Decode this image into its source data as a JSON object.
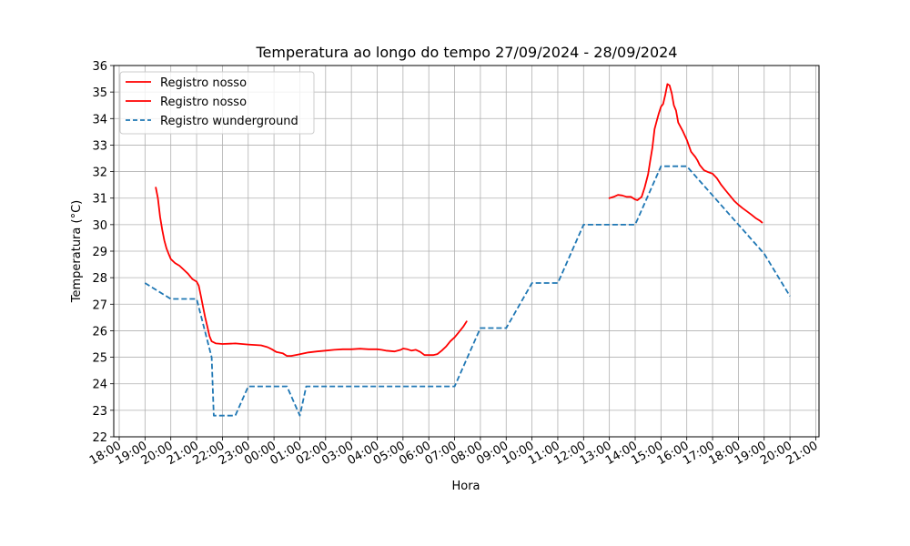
{
  "chart_data": {
    "type": "line",
    "title": "Temperatura ao longo do tempo 27/09/2024 - 28/09/2024",
    "xlabel": "Hora",
    "ylabel": "Temperatura (°C)",
    "xlim": [
      "18:00",
      "21:00"
    ],
    "ylim": [
      22,
      36
    ],
    "grid": true,
    "legend_position": "top-left",
    "x_ticks": [
      "18:00",
      "19:00",
      "20:00",
      "21:00",
      "22:00",
      "23:00",
      "00:00",
      "01:00",
      "02:00",
      "03:00",
      "04:00",
      "05:00",
      "06:00",
      "07:00",
      "08:00",
      "09:00",
      "10:00",
      "11:00",
      "12:00",
      "13:00",
      "14:00",
      "15:00",
      "16:00",
      "17:00",
      "18:00",
      "19:00",
      "20:00",
      "21:00"
    ],
    "y_ticks": [
      22,
      23,
      24,
      25,
      26,
      27,
      28,
      29,
      30,
      31,
      32,
      33,
      34,
      35,
      36
    ],
    "series": [
      {
        "name": "Registro nosso",
        "color": "#ff0000",
        "style": "solid",
        "points": [
          [
            "27/09 19:25",
            31.4
          ],
          [
            "27/09 19:30",
            31.0
          ],
          [
            "27/09 19:35",
            30.3
          ],
          [
            "27/09 19:40",
            29.8
          ],
          [
            "27/09 19:45",
            29.4
          ],
          [
            "27/09 19:50",
            29.1
          ],
          [
            "27/09 19:55",
            28.9
          ],
          [
            "27/09 20:00",
            28.7
          ],
          [
            "27/09 20:10",
            28.55
          ],
          [
            "27/09 20:20",
            28.45
          ],
          [
            "27/09 20:30",
            28.3
          ],
          [
            "27/09 20:40",
            28.15
          ],
          [
            "27/09 20:50",
            27.95
          ],
          [
            "27/09 21:00",
            27.85
          ],
          [
            "27/09 21:05",
            27.7
          ],
          [
            "27/09 21:10",
            27.3
          ],
          [
            "27/09 21:15",
            26.9
          ],
          [
            "27/09 21:20",
            26.5
          ],
          [
            "27/09 21:25",
            26.15
          ],
          [
            "27/09 21:30",
            25.8
          ],
          [
            "27/09 21:35",
            25.6
          ],
          [
            "27/09 21:45",
            25.52
          ],
          [
            "27/09 22:00",
            25.5
          ],
          [
            "27/09 22:30",
            25.52
          ],
          [
            "27/09 23:00",
            25.48
          ],
          [
            "27/09 23:30",
            25.45
          ],
          [
            "27/09 23:45",
            25.38
          ],
          [
            "27/09 23:55",
            25.3
          ],
          [
            "28/09 00:05",
            25.2
          ],
          [
            "28/09 00:20",
            25.15
          ],
          [
            "28/09 00:30",
            25.05
          ],
          [
            "28/09 00:40",
            25.05
          ],
          [
            "28/09 00:55",
            25.1
          ],
          [
            "28/09 01:10",
            25.15
          ],
          [
            "28/09 01:20",
            25.18
          ],
          [
            "28/09 01:40",
            25.22
          ],
          [
            "28/09 02:00",
            25.25
          ],
          [
            "28/09 02:20",
            25.28
          ],
          [
            "28/09 02:40",
            25.3
          ],
          [
            "28/09 03:00",
            25.3
          ],
          [
            "28/09 03:20",
            25.32
          ],
          [
            "28/09 03:40",
            25.3
          ],
          [
            "28/09 04:00",
            25.3
          ],
          [
            "28/09 04:10",
            25.28
          ],
          [
            "28/09 04:20",
            25.25
          ],
          [
            "28/09 04:40",
            25.22
          ],
          [
            "28/09 04:55",
            25.28
          ],
          [
            "28/09 05:00",
            25.33
          ],
          [
            "28/09 05:10",
            25.3
          ],
          [
            "28/09 05:20",
            25.25
          ],
          [
            "28/09 05:30",
            25.28
          ],
          [
            "28/09 05:40",
            25.2
          ],
          [
            "28/09 05:50",
            25.08
          ],
          [
            "28/09 06:10",
            25.08
          ],
          [
            "28/09 06:20",
            25.12
          ],
          [
            "28/09 06:30",
            25.25
          ],
          [
            "28/09 06:40",
            25.4
          ],
          [
            "28/09 06:50",
            25.6
          ],
          [
            "28/09 07:00",
            25.75
          ],
          [
            "28/09 07:10",
            25.95
          ],
          [
            "28/09 07:20",
            26.15
          ],
          [
            "28/09 07:28",
            26.35
          ],
          null,
          [
            "28/09 13:00",
            31.0
          ],
          [
            "28/09 13:10",
            31.05
          ],
          [
            "28/09 13:20",
            31.12
          ],
          [
            "28/09 13:30",
            31.1
          ],
          [
            "28/09 13:40",
            31.05
          ],
          [
            "28/09 13:50",
            31.05
          ],
          [
            "28/09 14:00",
            30.95
          ],
          [
            "28/09 14:05",
            30.92
          ],
          [
            "28/09 14:15",
            31.05
          ],
          [
            "28/09 14:22",
            31.4
          ],
          [
            "28/09 14:30",
            31.9
          ],
          [
            "28/09 14:35",
            32.4
          ],
          [
            "28/09 14:40",
            32.9
          ],
          [
            "28/09 14:45",
            33.6
          ],
          [
            "28/09 14:50",
            33.9
          ],
          [
            "28/09 14:55",
            34.2
          ],
          [
            "28/09 15:00",
            34.45
          ],
          [
            "28/09 15:05",
            34.55
          ],
          [
            "28/09 15:10",
            34.9
          ],
          [
            "28/09 15:15",
            35.3
          ],
          [
            "28/09 15:20",
            35.25
          ],
          [
            "28/09 15:25",
            34.95
          ],
          [
            "28/09 15:30",
            34.5
          ],
          [
            "28/09 15:35",
            34.3
          ],
          [
            "28/09 15:40",
            33.85
          ],
          [
            "28/09 15:50",
            33.55
          ],
          [
            "28/09 16:00",
            33.2
          ],
          [
            "28/09 16:10",
            32.75
          ],
          [
            "28/09 16:20",
            32.55
          ],
          [
            "28/09 16:25",
            32.42
          ],
          [
            "28/09 16:30",
            32.25
          ],
          [
            "28/09 16:40",
            32.05
          ],
          [
            "28/09 16:50",
            31.98
          ],
          [
            "28/09 17:00",
            31.92
          ],
          [
            "28/09 17:10",
            31.75
          ],
          [
            "28/09 17:20",
            31.5
          ],
          [
            "28/09 17:30",
            31.3
          ],
          [
            "28/09 17:40",
            31.1
          ],
          [
            "28/09 17:50",
            30.9
          ],
          [
            "28/09 18:00",
            30.75
          ],
          [
            "28/09 18:10",
            30.62
          ],
          [
            "28/09 18:20",
            30.5
          ],
          [
            "28/09 18:30",
            30.38
          ],
          [
            "28/09 18:40",
            30.25
          ],
          [
            "28/09 18:50",
            30.15
          ],
          [
            "28/09 18:55",
            30.08
          ]
        ]
      },
      {
        "name": "Registro nosso",
        "color": "#ff0000",
        "style": "solid",
        "points": []
      },
      {
        "name": "Registro wunderground",
        "color": "#1f77b4",
        "style": "dashed",
        "points": [
          [
            "27/09 19:00",
            27.8
          ],
          [
            "27/09 20:00",
            27.2
          ],
          [
            "27/09 21:00",
            27.2
          ],
          [
            "27/09 21:35",
            25.0
          ],
          [
            "27/09 21:40",
            22.8
          ],
          [
            "27/09 22:30",
            22.8
          ],
          [
            "27/09 23:00",
            23.9
          ],
          [
            "28/09 00:30",
            23.9
          ],
          [
            "28/09 01:00",
            22.8
          ],
          [
            "28/09 01:15",
            23.9
          ],
          [
            "28/09 07:00",
            23.9
          ],
          [
            "28/09 08:00",
            26.1
          ],
          [
            "28/09 09:00",
            26.1
          ],
          [
            "28/09 10:00",
            27.8
          ],
          [
            "28/09 11:00",
            27.8
          ],
          [
            "28/09 12:00",
            30.0
          ],
          [
            "28/09 14:00",
            30.0
          ],
          [
            "28/09 15:00",
            32.2
          ],
          [
            "28/09 16:00",
            32.2
          ],
          [
            "28/09 19:00",
            28.9
          ],
          [
            "28/09 20:00",
            27.3
          ]
        ]
      }
    ]
  }
}
